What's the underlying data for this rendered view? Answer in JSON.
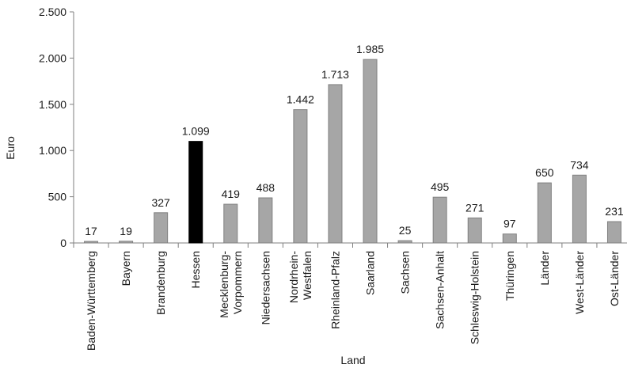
{
  "chart_data": {
    "type": "bar",
    "title": "",
    "xlabel": "Land",
    "ylabel": "Euro",
    "ylim": [
      0,
      2500
    ],
    "yticks": [
      0,
      500,
      1000,
      1500,
      2000,
      2500
    ],
    "ytick_labels": [
      "0",
      "500",
      "1.000",
      "1.500",
      "2.000",
      "2.500"
    ],
    "grid": false,
    "legend": "none",
    "categories": [
      "Baden-Württemberg",
      "Bayern",
      "Brandenburg",
      "Hessen",
      "Mecklenburg-Vorpommern",
      "Niedersachsen",
      "Nordrhein-Westfalen",
      "Rheinland-Pfalz",
      "Saarland",
      "Sachsen",
      "Sachsen-Anhalt",
      "Schleswig-Holstein",
      "Thüringen",
      "Länder",
      "West-Länder",
      "Ost-Länder"
    ],
    "category_label_lines": [
      [
        "Baden-Württemberg"
      ],
      [
        "Bayern"
      ],
      [
        "Brandenburg"
      ],
      [
        "Hessen"
      ],
      [
        "Mecklenburg-",
        "Vorpommern"
      ],
      [
        "Niedersachsen"
      ],
      [
        "Nordrhein-",
        "Westfalen"
      ],
      [
        "Rheinland-Pfalz"
      ],
      [
        "Saarland"
      ],
      [
        "Sachsen"
      ],
      [
        "Sachsen-Anhalt"
      ],
      [
        "Schleswig-Holstein"
      ],
      [
        "Thüringen"
      ],
      [
        "Länder"
      ],
      [
        "West-Länder"
      ],
      [
        "Ost-Länder"
      ]
    ],
    "values": [
      17,
      19,
      327,
      1099,
      419,
      488,
      1442,
      1713,
      1985,
      25,
      495,
      271,
      97,
      650,
      734,
      231
    ],
    "value_labels": [
      "17",
      "19",
      "327",
      "1.099",
      "419",
      "488",
      "1.442",
      "1.713",
      "1.985",
      "25",
      "495",
      "271",
      "97",
      "650",
      "734",
      "231"
    ],
    "highlight_index": 3,
    "colors": {
      "bar": "#a6a6a6",
      "bar_border": "#808080",
      "highlight": "#000000",
      "axis": "#7f7f7f"
    }
  }
}
